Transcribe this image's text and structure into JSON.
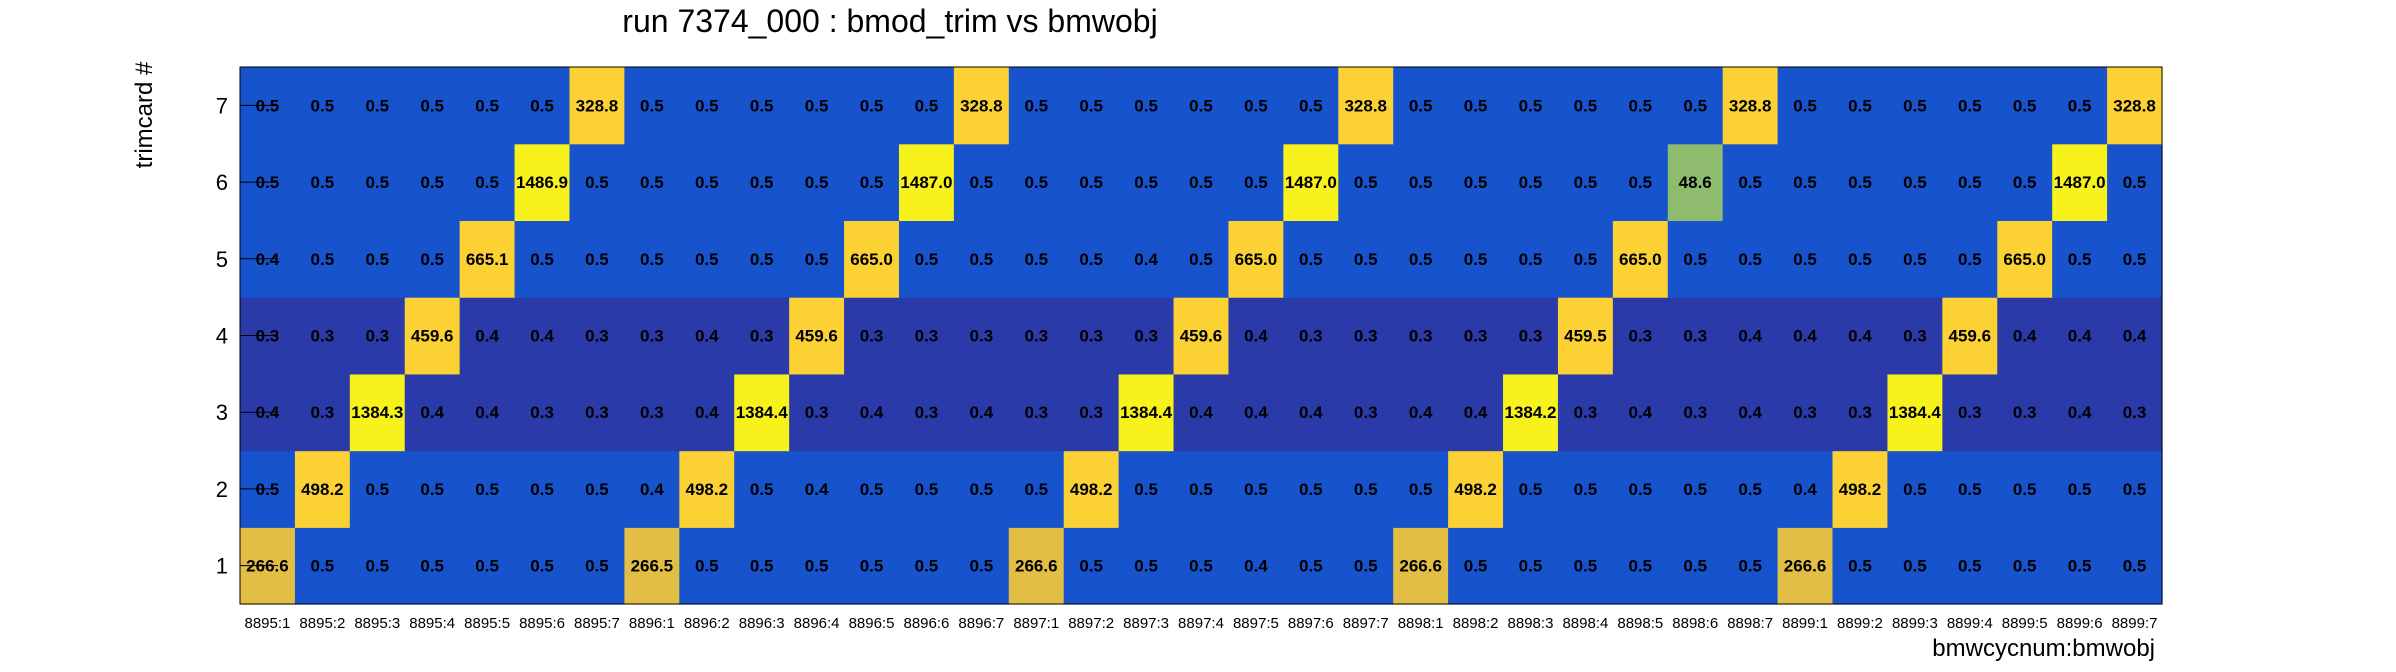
{
  "chart_data": {
    "type": "heatmap",
    "title": "run 7374_000 : bmod_trim vs bmwobj",
    "xlabel": "bmwcycnum:bmwobj",
    "ylabel": "trimcard #",
    "x_categories": [
      "8895:1",
      "8895:2",
      "8895:3",
      "8895:4",
      "8895:5",
      "8895:6",
      "8895:7",
      "8896:1",
      "8896:2",
      "8896:3",
      "8896:4",
      "8896:5",
      "8896:6",
      "8896:7",
      "8897:1",
      "8897:2",
      "8897:3",
      "8897:4",
      "8897:5",
      "8897:6",
      "8897:7",
      "8898:1",
      "8898:2",
      "8898:3",
      "8898:4",
      "8898:5",
      "8898:6",
      "8898:7",
      "8899:1",
      "8899:2",
      "8899:3",
      "8899:4",
      "8899:5",
      "8899:6",
      "8899:7"
    ],
    "y_categories": [
      "1",
      "2",
      "3",
      "4",
      "5",
      "6",
      "7"
    ],
    "values": [
      [
        "266.6",
        "0.5",
        "0.5",
        "0.5",
        "0.5",
        "0.5",
        "0.5",
        "266.5",
        "0.5",
        "0.5",
        "0.5",
        "0.5",
        "0.5",
        "0.5",
        "266.6",
        "0.5",
        "0.5",
        "0.5",
        "0.4",
        "0.5",
        "0.5",
        "266.6",
        "0.5",
        "0.5",
        "0.5",
        "0.5",
        "0.5",
        "0.5",
        "266.6",
        "0.5",
        "0.5",
        "0.5",
        "0.5",
        "0.5",
        "0.5"
      ],
      [
        "0.5",
        "498.2",
        "0.5",
        "0.5",
        "0.5",
        "0.5",
        "0.5",
        "0.4",
        "498.2",
        "0.5",
        "0.4",
        "0.5",
        "0.5",
        "0.5",
        "0.5",
        "498.2",
        "0.5",
        "0.5",
        "0.5",
        "0.5",
        "0.5",
        "0.5",
        "498.2",
        "0.5",
        "0.5",
        "0.5",
        "0.5",
        "0.5",
        "0.4",
        "498.2",
        "0.5",
        "0.5",
        "0.5",
        "0.5",
        "0.5"
      ],
      [
        "0.4",
        "0.3",
        "1384.3",
        "0.4",
        "0.4",
        "0.3",
        "0.3",
        "0.3",
        "0.4",
        "1384.4",
        "0.3",
        "0.4",
        "0.3",
        "0.4",
        "0.3",
        "0.3",
        "1384.4",
        "0.4",
        "0.4",
        "0.4",
        "0.3",
        "0.4",
        "0.4",
        "1384.2",
        "0.3",
        "0.4",
        "0.3",
        "0.4",
        "0.3",
        "0.3",
        "1384.4",
        "0.3",
        "0.3",
        "0.4",
        "0.3"
      ],
      [
        "0.3",
        "0.3",
        "0.3",
        "459.6",
        "0.4",
        "0.4",
        "0.3",
        "0.3",
        "0.4",
        "0.3",
        "459.6",
        "0.3",
        "0.3",
        "0.3",
        "0.3",
        "0.3",
        "0.3",
        "459.6",
        "0.4",
        "0.3",
        "0.3",
        "0.3",
        "0.3",
        "0.3",
        "459.5",
        "0.3",
        "0.3",
        "0.4",
        "0.4",
        "0.4",
        "0.3",
        "459.6",
        "0.4",
        "0.4",
        "0.4"
      ],
      [
        "0.4",
        "0.5",
        "0.5",
        "0.5",
        "665.1",
        "0.5",
        "0.5",
        "0.5",
        "0.5",
        "0.5",
        "0.5",
        "665.0",
        "0.5",
        "0.5",
        "0.5",
        "0.5",
        "0.4",
        "0.5",
        "665.0",
        "0.5",
        "0.5",
        "0.5",
        "0.5",
        "0.5",
        "0.5",
        "665.0",
        "0.5",
        "0.5",
        "0.5",
        "0.5",
        "0.5",
        "0.5",
        "665.0",
        "0.5",
        "0.5"
      ],
      [
        "0.5",
        "0.5",
        "0.5",
        "0.5",
        "0.5",
        "1486.9",
        "0.5",
        "0.5",
        "0.5",
        "0.5",
        "0.5",
        "0.5",
        "1487.0",
        "0.5",
        "0.5",
        "0.5",
        "0.5",
        "0.5",
        "0.5",
        "1487.0",
        "0.5",
        "0.5",
        "0.5",
        "0.5",
        "0.5",
        "0.5",
        "48.6",
        "0.5",
        "0.5",
        "0.5",
        "0.5",
        "0.5",
        "0.5",
        "1487.0",
        "0.5"
      ],
      [
        "0.5",
        "0.5",
        "0.5",
        "0.5",
        "0.5",
        "0.5",
        "328.8",
        "0.5",
        "0.5",
        "0.5",
        "0.5",
        "0.5",
        "0.5",
        "328.8",
        "0.5",
        "0.5",
        "0.5",
        "0.5",
        "0.5",
        "0.5",
        "328.8",
        "0.5",
        "0.5",
        "0.5",
        "0.5",
        "0.5",
        "0.5",
        "328.8",
        "0.5",
        "0.5",
        "0.5",
        "0.5",
        "0.5",
        "0.5",
        "328.8"
      ]
    ],
    "colors": {
      "low_row_band": "#2a3aa8",
      "baseline": "#1753cc",
      "peak_bright": "#f8f21c",
      "peak_warm": "#fbd134",
      "peak_amber": "#e3be44",
      "mid_green": "#8fbb6e"
    },
    "grid": false,
    "legend": "none"
  }
}
